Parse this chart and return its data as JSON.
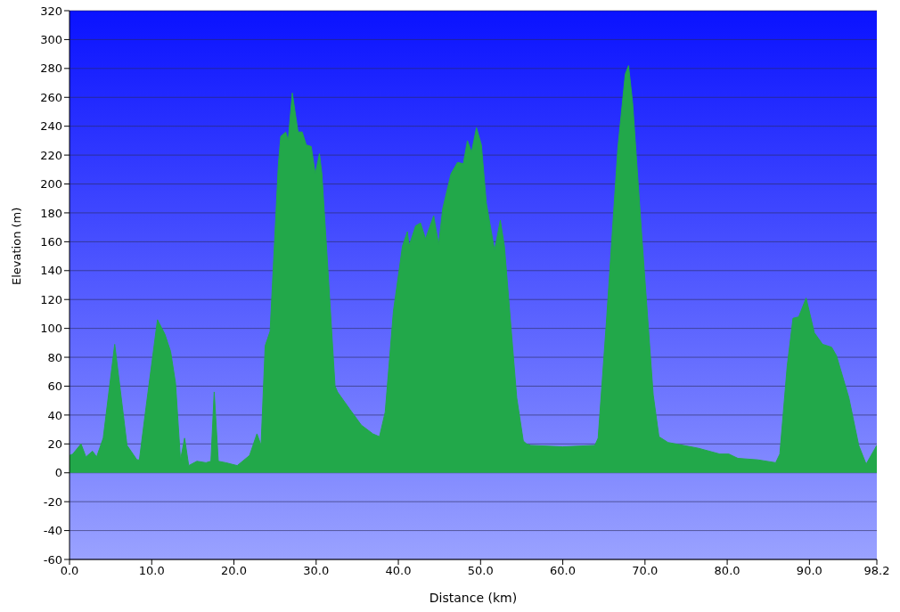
{
  "chart_data": {
    "type": "area",
    "xlabel": "Distance  (km)",
    "ylabel": "Elevation (m)",
    "x": [
      0,
      0.4,
      1.4,
      2.0,
      2.8,
      3.3,
      4.1,
      5.5,
      7.0,
      8.2,
      8.5,
      9.3,
      10.7,
      11.6,
      12.3,
      12.9,
      13.5,
      14.0,
      14.5,
      15.5,
      16.6,
      17.2,
      17.6,
      18.1,
      19.0,
      20.4,
      21.9,
      22.8,
      23.3,
      23.8,
      24.4,
      25.4,
      25.7,
      26.3,
      26.6,
      27.1,
      27.8,
      28.3,
      28.8,
      29.4,
      29.9,
      30.4,
      30.7,
      31.3,
      32.3,
      32.6,
      34.1,
      35.5,
      36.9,
      37.7,
      38.4,
      39.4,
      40.5,
      41.1,
      41.3,
      42.1,
      42.7,
      43.3,
      44.3,
      44.9,
      45.4,
      46.4,
      47.2,
      47.9,
      48.4,
      48.9,
      49.5,
      50.1,
      50.7,
      51.7,
      52.4,
      52.9,
      54.4,
      55.2,
      55.6,
      56.1,
      60.0,
      63.9,
      64.3,
      65.3,
      66.7,
      67.6,
      68.0,
      68.5,
      69.6,
      71.0,
      71.7,
      72.8,
      76.5,
      79.1,
      80.2,
      81.3,
      83.7,
      85.9,
      86.4,
      87.3,
      88.0,
      88.7,
      89.6,
      90.6,
      91.6,
      92.7,
      93.3,
      94.8,
      96.0,
      96.9,
      97.8,
      98.2
    ],
    "series": [
      {
        "color": "#22a84a",
        "values": [
          12,
          13,
          20,
          11,
          15,
          11,
          24,
          89,
          19,
          9,
          9,
          45,
          106,
          96,
          84,
          62,
          9,
          24,
          5,
          8,
          7,
          8,
          56,
          8,
          7,
          5,
          12,
          27,
          19,
          88,
          98,
          213,
          233,
          236,
          230,
          263,
          236,
          236,
          227,
          226,
          207,
          221,
          207,
          153,
          60,
          56,
          44,
          33,
          27,
          25,
          42,
          112,
          157,
          167,
          157,
          171,
          173,
          162,
          178,
          158,
          183,
          207,
          215,
          214,
          230,
          222,
          239,
          227,
          187,
          154,
          175,
          157,
          52,
          22,
          20,
          19,
          18,
          19,
          24,
          104,
          225,
          276,
          282,
          256,
          165,
          54,
          25,
          21,
          17,
          13,
          13,
          10,
          9,
          7,
          13,
          74,
          107,
          108,
          121,
          97,
          89,
          87,
          81,
          52,
          19,
          6,
          15,
          19
        ]
      }
    ],
    "xlim": [
      0,
      98.2
    ],
    "xticks": [
      {
        "value": 0,
        "label": "0.0"
      },
      {
        "value": 10,
        "label": "10.0"
      },
      {
        "value": 20,
        "label": "20.0"
      },
      {
        "value": 30,
        "label": "30.0"
      },
      {
        "value": 40,
        "label": "40.0"
      },
      {
        "value": 50,
        "label": "50.0"
      },
      {
        "value": 60,
        "label": "60.0"
      },
      {
        "value": 70,
        "label": "70.0"
      },
      {
        "value": 80,
        "label": "80.0"
      },
      {
        "value": 90,
        "label": "90.0"
      },
      {
        "value": 98.2,
        "label": "98.2"
      }
    ],
    "ylim": [
      -60,
      320
    ],
    "yticks": [
      -60,
      -40,
      -20,
      0,
      20,
      40,
      60,
      80,
      100,
      120,
      140,
      160,
      180,
      200,
      220,
      240,
      260,
      280,
      300,
      320
    ],
    "grid": "y",
    "legend": false
  }
}
